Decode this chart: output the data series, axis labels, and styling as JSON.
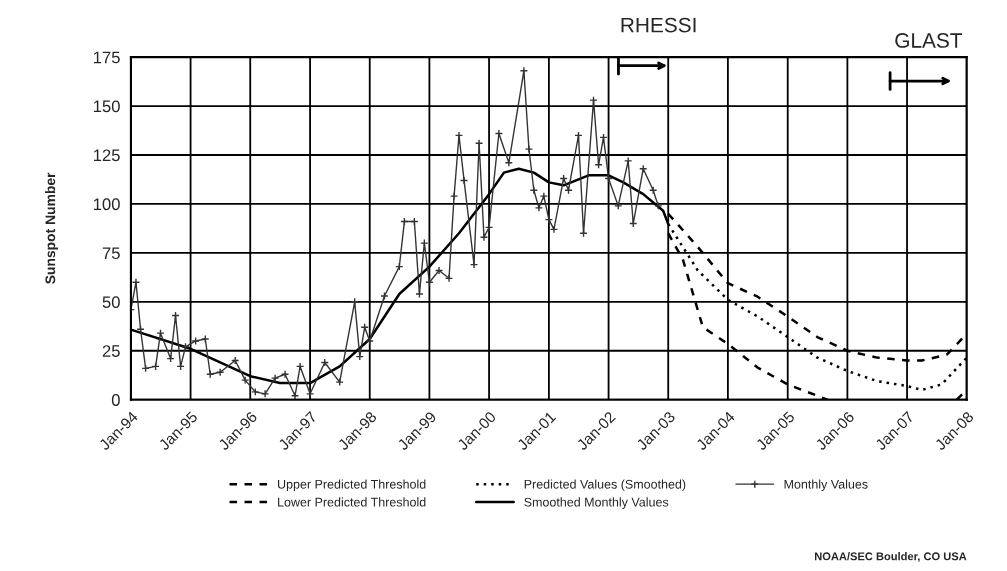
{
  "chart_data": {
    "type": "line",
    "ylabel": "Sunspot Number",
    "xlim": [
      "1994-01",
      "2008-01"
    ],
    "xticks": [
      {
        "value": "1994-01",
        "label": "Jan-94"
      },
      {
        "value": "1995-01",
        "label": "Jan-95"
      },
      {
        "value": "1996-01",
        "label": "Jan-96"
      },
      {
        "value": "1997-01",
        "label": "Jan-97"
      },
      {
        "value": "1998-01",
        "label": "Jan-98"
      },
      {
        "value": "1999-01",
        "label": "Jan-99"
      },
      {
        "value": "2000-01",
        "label": "Jan-00"
      },
      {
        "value": "2001-01",
        "label": "Jan-01"
      },
      {
        "value": "2002-01",
        "label": "Jan-02"
      },
      {
        "value": "2003-01",
        "label": "Jan-03"
      },
      {
        "value": "2004-01",
        "label": "Jan-04"
      },
      {
        "value": "2005-01",
        "label": "Jan-05"
      },
      {
        "value": "2006-01",
        "label": "Jan-06"
      },
      {
        "value": "2007-01",
        "label": "Jan-07"
      },
      {
        "value": "2008-01",
        "label": "Jan-08"
      }
    ],
    "ylim": [
      0,
      175
    ],
    "yticks": [
      0,
      25,
      50,
      75,
      100,
      125,
      150,
      175
    ],
    "grid": true,
    "legend": "bottom",
    "series": [
      {
        "name": "Upper Predicted Threshold",
        "color": "#000000",
        "line_style": "dashed",
        "marker": "none",
        "x": [
          "2003-01",
          "2003-07",
          "2004-01",
          "2004-07",
          "2005-01",
          "2005-07",
          "2006-01",
          "2006-07",
          "2007-01",
          "2007-04",
          "2007-09",
          "2008-01"
        ],
        "values": [
          95,
          78,
          59.5,
          52.6,
          42.5,
          32,
          25,
          21.5,
          20,
          20,
          23,
          33.6
        ]
      },
      {
        "name": "Lower Predicted Threshold",
        "color": "#000000",
        "line_style": "dashed",
        "marker": "none",
        "x": [
          "2003-01",
          "2003-04",
          "2003-08",
          "2004-01",
          "2004-07",
          "2005-01",
          "2005-07",
          "2005-09",
          "2006-07",
          "2007-11",
          "2008-01"
        ],
        "values": [
          85,
          71.5,
          37,
          28.5,
          16.4,
          7.8,
          2,
          0,
          null,
          0,
          5
        ]
      },
      {
        "name": "Predicted Values (Smoothed)",
        "color": "#000000",
        "line_style": "dotted",
        "marker": "none",
        "x": [
          "2003-01",
          "2003-07",
          "2004-01",
          "2004-07",
          "2005-01",
          "2005-07",
          "2006-01",
          "2006-07",
          "2007-01",
          "2007-04",
          "2007-08",
          "2008-01"
        ],
        "values": [
          89.7,
          66,
          51,
          42.5,
          32,
          21.5,
          14.7,
          9.5,
          7,
          5,
          7.8,
          21.5
        ]
      },
      {
        "name": "Smoothed Monthly Values",
        "color": "#000000",
        "line_style": "solid",
        "marker": "none",
        "x": [
          "1994-01",
          "1995-01",
          "1996-01",
          "1996-07",
          "1997-01",
          "1997-07",
          "1998-01",
          "1998-07",
          "1999-01",
          "1999-07",
          "2000-01",
          "2000-04",
          "2000-07",
          "2000-10",
          "2001-01",
          "2001-04",
          "2001-09",
          "2002-01",
          "2002-04",
          "2002-08",
          "2002-12",
          "2003-01"
        ],
        "values": [
          35.8,
          26,
          12,
          8.5,
          8.5,
          17,
          31,
          54,
          68,
          85,
          105,
          116,
          118,
          116,
          111,
          109.5,
          114.6,
          114.6,
          111,
          105,
          96.5,
          89.7
        ]
      },
      {
        "name": "Monthly Values",
        "color": "#333333",
        "line_style": "solid",
        "marker": "cross",
        "x": [
          "1994-01",
          "1994-02",
          "1994-03",
          "1994-04",
          "1994-06",
          "1994-07",
          "1994-09",
          "1994-10",
          "1994-11",
          "1994-12",
          "1995-02",
          "1995-04",
          "1995-05",
          "1995-07",
          "1995-10",
          "1995-12",
          "1996-02",
          "1996-04",
          "1996-06",
          "1996-08",
          "1996-10",
          "1996-11",
          "1997-01",
          "1997-04",
          "1997-07",
          "1997-10",
          "1997-11",
          "1997-12",
          "1998-01",
          "1998-04",
          "1998-07",
          "1998-08",
          "1998-10",
          "1998-11",
          "1998-12",
          "1999-01",
          "1999-03",
          "1999-05",
          "1999-06",
          "1999-07",
          "1999-08",
          "1999-10",
          "1999-11",
          "1999-12",
          "2000-01",
          "2000-03",
          "2000-05",
          "2000-08",
          "2000-09",
          "2000-10",
          "2000-11",
          "2000-12",
          "2001-01",
          "2001-02",
          "2001-04",
          "2001-05",
          "2001-07",
          "2001-08",
          "2001-10",
          "2001-11",
          "2001-12",
          "2002-01",
          "2002-03",
          "2002-05",
          "2002-06",
          "2002-08",
          "2002-10",
          "2002-11"
        ],
        "values": [
          46,
          60,
          36,
          16,
          17,
          34,
          21,
          43,
          17,
          27,
          30,
          31,
          13,
          14,
          20,
          10,
          4,
          3,
          11,
          13,
          2,
          17,
          3,
          19,
          9,
          50,
          22,
          37,
          30,
          53,
          68,
          91,
          91,
          54,
          80,
          60,
          66,
          62,
          104,
          135,
          112,
          69,
          131,
          83,
          88,
          136,
          121,
          168,
          128,
          107,
          98,
          104,
          92,
          87,
          113,
          107,
          135,
          85,
          153,
          120,
          134,
          113,
          99,
          122,
          90,
          118,
          107,
          99
        ]
      }
    ],
    "annotations": [
      "RHESSI",
      "GLAST",
      "NOAA/SEC Boulder, CO USA"
    ]
  }
}
